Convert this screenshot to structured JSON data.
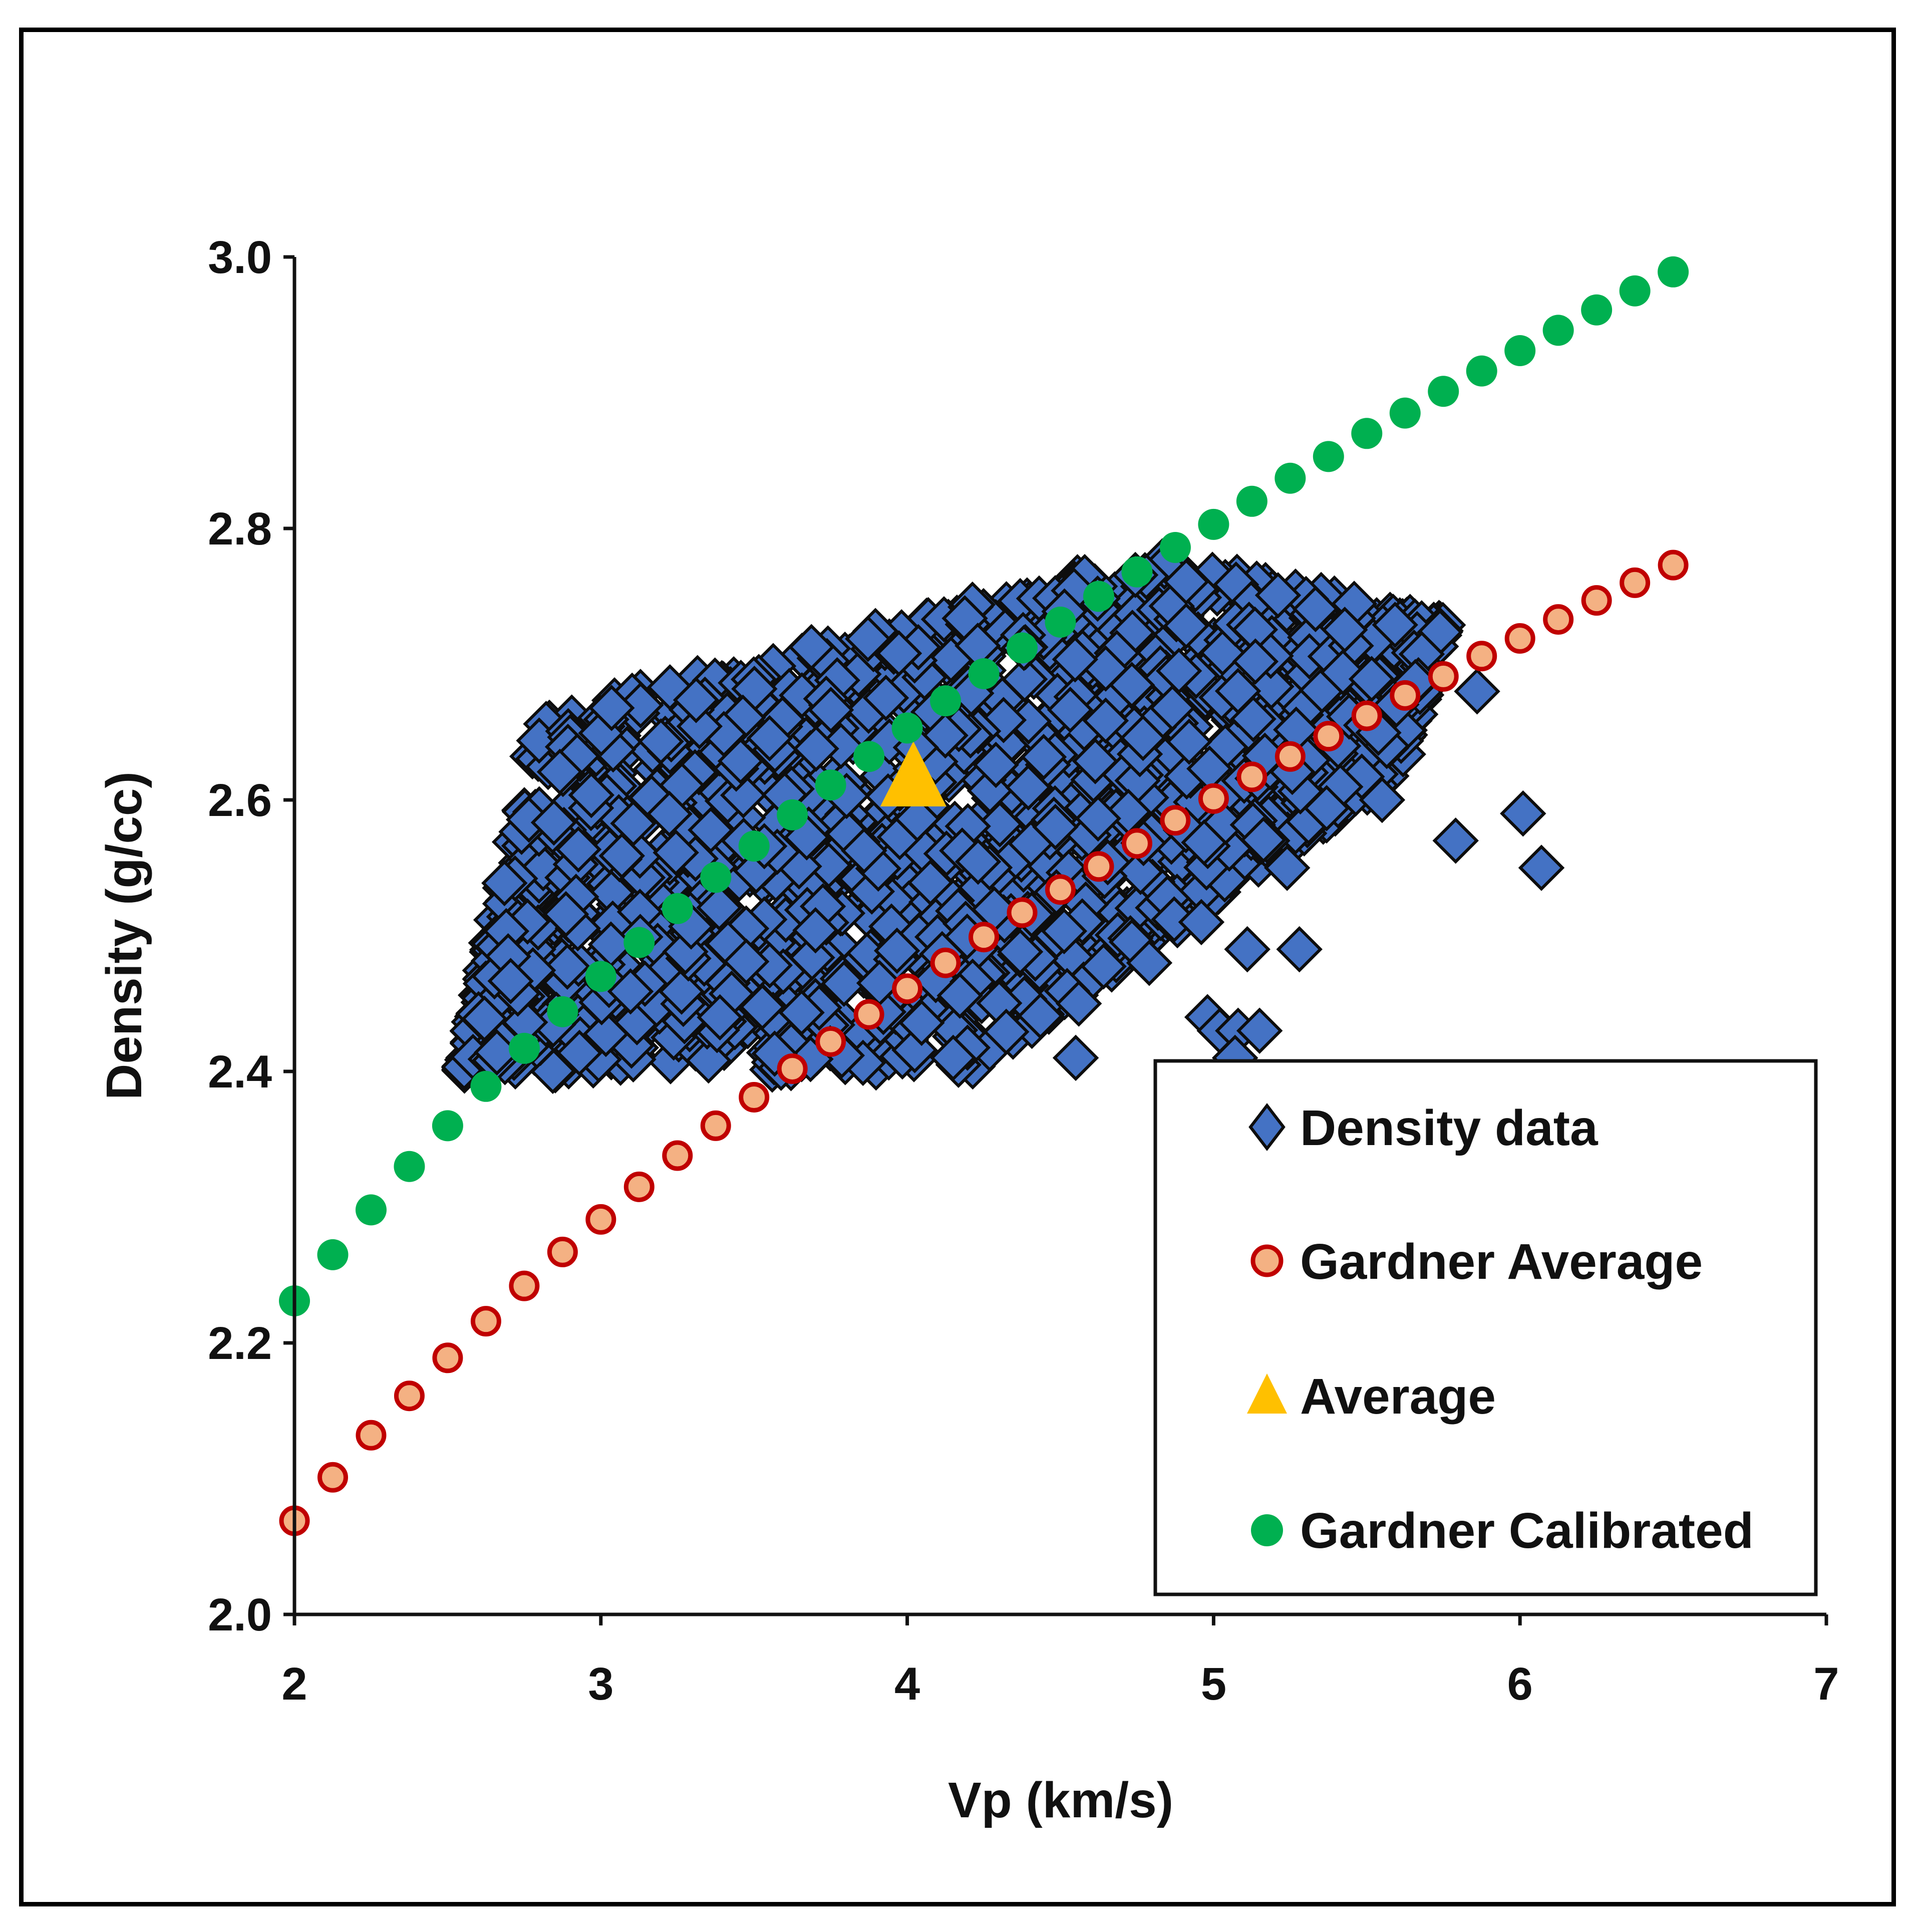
{
  "chart_data": {
    "type": "scatter",
    "title": "",
    "xlabel": "Vp (km/s)",
    "ylabel": "Density (g/cc)",
    "xlim": [
      2,
      7
    ],
    "ylim": [
      2.0,
      3.0
    ],
    "x_ticks": [
      "2",
      "3",
      "4",
      "5",
      "6",
      "7"
    ],
    "y_ticks": [
      "2.0",
      "2.2",
      "2.4",
      "2.6",
      "2.8",
      "3.0"
    ],
    "grid": false,
    "legend_position": "bottom-right",
    "series": [
      {
        "name": "Density data",
        "marker": "diamond",
        "color": "#4472C4",
        "edge_color": "#0d0d0d",
        "description_points": "dense cloud of several thousand points; outliers listed explicitly",
        "cloud": {
          "x_range": [
            2.5,
            5.75
          ],
          "lower_left": [
            2.55,
            2.4
          ],
          "upper_left": [
            2.8,
            2.66
          ],
          "upper_mid": [
            4.8,
            2.78
          ],
          "upper_right": [
            5.75,
            2.73
          ],
          "lower_right": [
            5.6,
            2.62
          ],
          "lower_mid": [
            4.2,
            2.4
          ]
        },
        "outliers": [
          {
            "x": 5.86,
            "y": 2.68
          },
          {
            "x": 5.79,
            "y": 2.57
          },
          {
            "x": 6.01,
            "y": 2.59
          },
          {
            "x": 6.07,
            "y": 2.55
          },
          {
            "x": 5.55,
            "y": 2.6
          },
          {
            "x": 5.28,
            "y": 2.49
          },
          {
            "x": 5.11,
            "y": 2.49
          },
          {
            "x": 5.24,
            "y": 2.55
          },
          {
            "x": 4.79,
            "y": 2.48
          },
          {
            "x": 4.56,
            "y": 2.45
          },
          {
            "x": 4.55,
            "y": 2.41
          },
          {
            "x": 4.96,
            "y": 2.51
          },
          {
            "x": 4.98,
            "y": 2.44
          },
          {
            "x": 5.02,
            "y": 2.43
          },
          {
            "x": 5.08,
            "y": 2.43
          },
          {
            "x": 5.15,
            "y": 2.43
          },
          {
            "x": 5.07,
            "y": 2.41
          },
          {
            "x": 4.15,
            "y": 2.41
          }
        ]
      },
      {
        "name": "Gardner Average",
        "marker": "circle",
        "color": "#F4B183",
        "edge_color": "#C00000",
        "x": [
          2.0,
          2.125,
          2.25,
          2.375,
          2.5,
          2.625,
          2.75,
          2.875,
          3.0,
          3.125,
          3.25,
          3.375,
          3.5,
          3.625,
          3.75,
          3.875,
          4.0,
          4.125,
          4.25,
          4.375,
          4.5,
          4.625,
          4.75,
          4.875,
          5.0,
          5.125,
          5.25,
          5.375,
          5.5,
          5.625,
          5.75,
          5.875,
          6.0,
          6.125,
          6.25,
          6.375,
          6.5
        ],
        "y": [
          2.069,
          2.101,
          2.132,
          2.161,
          2.189,
          2.216,
          2.242,
          2.267,
          2.291,
          2.315,
          2.338,
          2.36,
          2.381,
          2.402,
          2.422,
          2.442,
          2.461,
          2.48,
          2.499,
          2.517,
          2.534,
          2.551,
          2.568,
          2.585,
          2.601,
          2.617,
          2.632,
          2.647,
          2.662,
          2.677,
          2.691,
          2.706,
          2.719,
          2.733,
          2.747,
          2.76,
          2.773
        ]
      },
      {
        "name": "Average",
        "marker": "triangle",
        "color": "#FFC000",
        "x": [
          4.02
        ],
        "y": [
          2.61
        ]
      },
      {
        "name": "Gardner Calibrated",
        "marker": "circle",
        "color": "#00B050",
        "x": [
          2.0,
          2.125,
          2.25,
          2.375,
          2.5,
          2.625,
          2.75,
          2.875,
          3.0,
          3.125,
          3.25,
          3.375,
          3.5,
          3.625,
          3.75,
          3.875,
          4.0,
          4.125,
          4.25,
          4.375,
          4.5,
          4.625,
          4.75,
          4.875,
          5.0,
          5.125,
          5.25,
          5.375,
          5.5,
          5.625,
          5.75,
          5.875,
          6.0,
          6.125,
          6.25,
          6.375,
          6.5
        ],
        "y": [
          2.231,
          2.265,
          2.298,
          2.33,
          2.36,
          2.389,
          2.417,
          2.444,
          2.47,
          2.495,
          2.52,
          2.543,
          2.566,
          2.589,
          2.611,
          2.632,
          2.653,
          2.673,
          2.693,
          2.712,
          2.731,
          2.75,
          2.768,
          2.786,
          2.803,
          2.82,
          2.837,
          2.853,
          2.87,
          2.885,
          2.901,
          2.916,
          2.931,
          2.946,
          2.961,
          2.975,
          2.989
        ]
      }
    ]
  }
}
